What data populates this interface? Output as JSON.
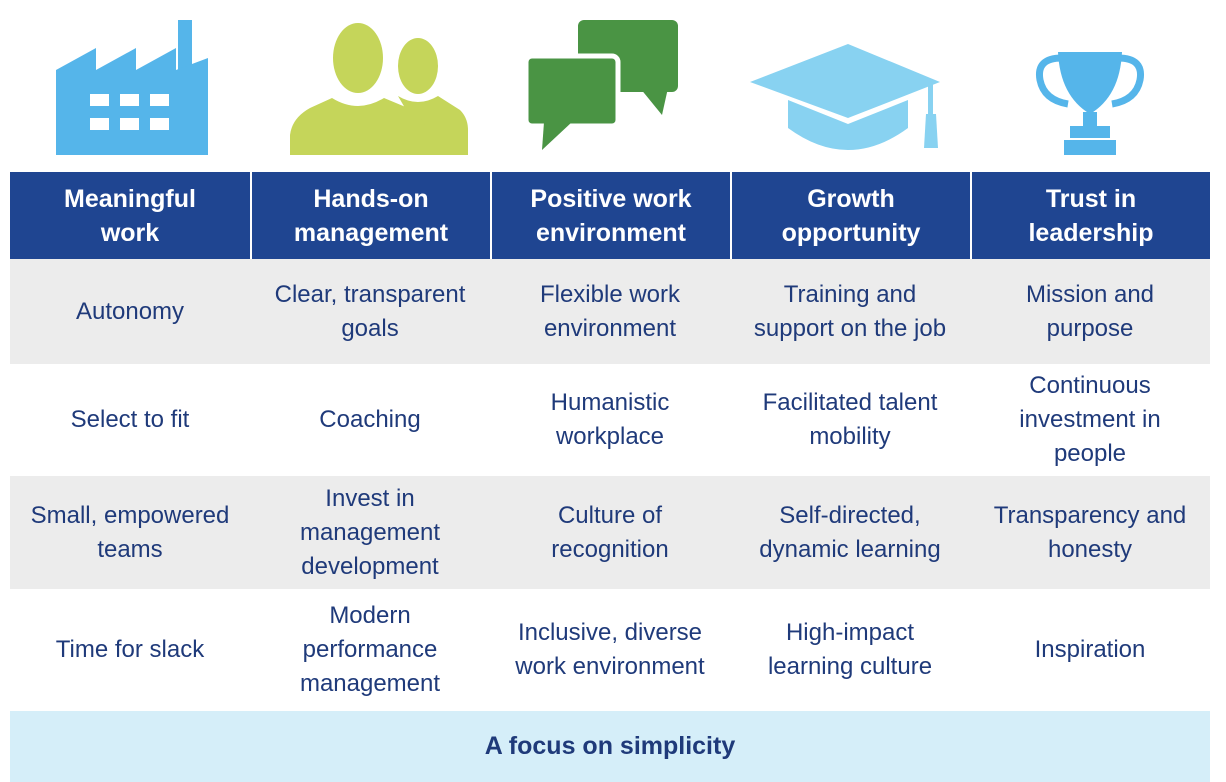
{
  "icons": [
    {
      "name": "factory-icon",
      "color": "#55b5ea"
    },
    {
      "name": "people-icon",
      "color": "#c5d55a"
    },
    {
      "name": "speech-bubbles-icon",
      "color": "#4a9444"
    },
    {
      "name": "graduation-cap-icon",
      "color": "#88d2f1"
    },
    {
      "name": "trophy-icon",
      "color": "#55b5ea"
    }
  ],
  "columns": [
    "Meaningful\nwork",
    "Hands-on\nmanagement",
    "Positive work\nenvironment",
    "Growth\nopportunity",
    "Trust in\nleadership"
  ],
  "rows": [
    [
      "Autonomy",
      "Clear, transparent\ngoals",
      "Flexible work\nenvironment",
      "Training and\nsupport on the job",
      "Mission and\npurpose"
    ],
    [
      "Select to fit",
      "Coaching",
      "Humanistic\nworkplace",
      "Facilitated talent\nmobility",
      "Continuous\ninvestment in\npeople"
    ],
    [
      "Small, empowered\nteams",
      "Invest in\nmanagement\ndevelopment",
      "Culture of\nrecognition",
      "Self-directed,\ndynamic learning",
      "Transparency and\nhonesty"
    ],
    [
      "Time for slack",
      "Modern\nperformance\nmanagement",
      "Inclusive, diverse\nwork environment",
      "High-impact\nlearning culture",
      "Inspiration"
    ]
  ],
  "footer": "A focus on simplicity",
  "colors": {
    "header_bg": "#1f4591",
    "body_text": "#1f3a7a",
    "row_shade": "#ececec",
    "footer_bg": "#d5eef9"
  }
}
